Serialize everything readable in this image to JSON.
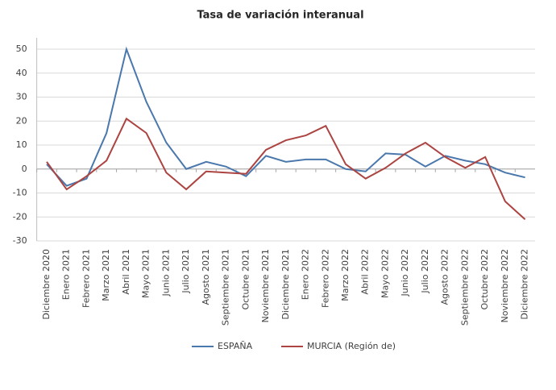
{
  "chart_data": {
    "type": "line",
    "title": "Tasa de variación interanual",
    "categories": [
      "Diciembre 2020",
      "Enero 2021",
      "Febrero 2021",
      "Marzo 2021",
      "Abril 2021",
      "Mayo 2021",
      "Junio 2021",
      "Julio 2021",
      "Agosto 2021",
      "Septiembre 2021",
      "Octubre 2021",
      "Noviembre 2021",
      "Diciembre 2021",
      "Enero 2022",
      "Febrero 2022",
      "Marzo 2022",
      "Abril 2022",
      "Mayo 2022",
      "Junio 2022",
      "Julio 2022",
      "Agosto 2022",
      "Septiembre 2022",
      "Octubre 2022",
      "Noviembre 2022",
      "Diciembre 2022"
    ],
    "series": [
      {
        "name": "ESPAÑA",
        "color": "#4a78ac",
        "values": [
          2,
          -7,
          -4,
          15,
          50,
          28,
          11,
          0,
          3,
          1,
          -3,
          5.5,
          3,
          4,
          4,
          0,
          -1,
          6.5,
          6,
          1,
          5.5,
          3.5,
          2,
          -1.5,
          -3.5
        ]
      },
      {
        "name": "MURCIA (Región de)",
        "color": "#ac4442",
        "values": [
          3,
          -8.5,
          -3,
          3.5,
          21,
          15,
          -1.5,
          -8.5,
          -1,
          -1.5,
          -2,
          8,
          12,
          14,
          18,
          2,
          -4,
          0.5,
          6.5,
          11,
          5,
          0.5,
          5,
          -13.5,
          -21
        ]
      }
    ],
    "ylim": [
      -30,
      50
    ],
    "yticks": [
      -30,
      -20,
      -10,
      0,
      10,
      20,
      30,
      40,
      50
    ],
    "grid": true,
    "legend": "bottom"
  }
}
